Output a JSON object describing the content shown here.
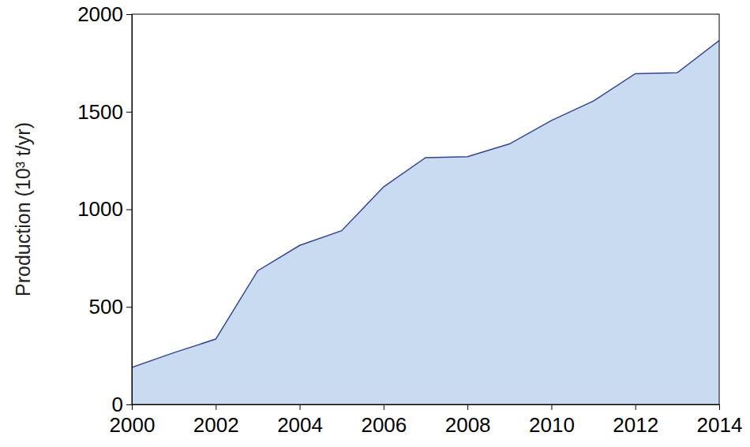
{
  "chart_data": {
    "type": "area",
    "y_label": "Production (10³ t/yr)",
    "x": [
      2000,
      2001,
      2002,
      2003,
      2004,
      2005,
      2006,
      2007,
      2008,
      2009,
      2010,
      2011,
      2012,
      2013,
      2014
    ],
    "values": [
      190,
      265,
      335,
      685,
      815,
      890,
      1115,
      1265,
      1270,
      1335,
      1455,
      1555,
      1695,
      1700,
      1865
    ],
    "color": "#c8dbf0",
    "xlim": [
      2000,
      2014
    ],
    "xticks": [
      2000,
      2002,
      2004,
      2006,
      2008,
      2010,
      2012,
      2014
    ],
    "ylim": [
      0,
      2000
    ],
    "yticks": [
      0,
      500,
      1000,
      1500,
      2000
    ],
    "grid": false
  }
}
